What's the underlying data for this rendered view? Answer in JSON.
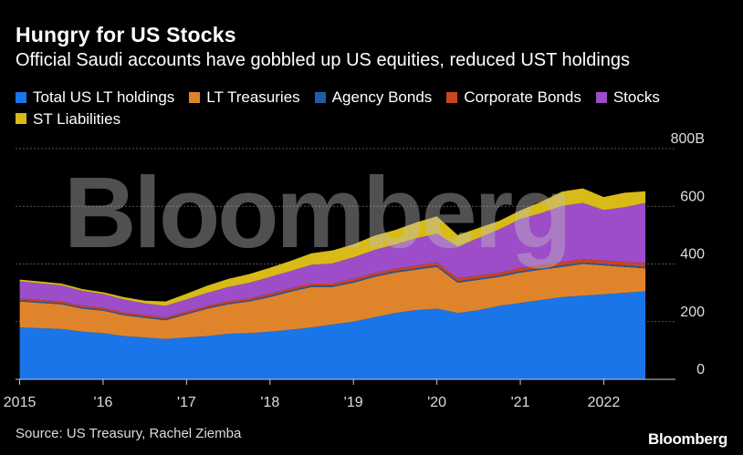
{
  "title": "Hungry for US Stocks",
  "subtitle": "Official Saudi accounts have gobbled up US equities, reduced UST holdings",
  "source": "Source: US Treasury, Rachel Ziemba",
  "brand": "Bloomberg",
  "watermark": "Bloomberg",
  "legend": [
    {
      "label": "Total US LT holdings",
      "color": "#1a75e8"
    },
    {
      "label": "LT Treasuries",
      "color": "#e0842b"
    },
    {
      "label": "Agency Bonds",
      "color": "#1f5ca8"
    },
    {
      "label": "Corporate Bonds",
      "color": "#c94420"
    },
    {
      "label": "Stocks",
      "color": "#9d4dc8"
    },
    {
      "label": "ST Liabilities",
      "color": "#d8bb17"
    }
  ],
  "chart_data": {
    "type": "area",
    "stacked": true,
    "x": [
      2015.0,
      2015.25,
      2015.5,
      2015.75,
      2016.0,
      2016.25,
      2016.5,
      2016.75,
      2017.0,
      2017.25,
      2017.5,
      2017.75,
      2018.0,
      2018.25,
      2018.5,
      2018.75,
      2019.0,
      2019.25,
      2019.5,
      2019.75,
      2020.0,
      2020.25,
      2020.5,
      2020.75,
      2021.0,
      2021.25,
      2021.5,
      2021.75,
      2022.0,
      2022.25,
      2022.5
    ],
    "x_ticks": [
      {
        "value": 2015,
        "label": "2015"
      },
      {
        "value": 2016,
        "label": "'16"
      },
      {
        "value": 2017,
        "label": "'17"
      },
      {
        "value": 2018,
        "label": "'18"
      },
      {
        "value": 2019,
        "label": "'19"
      },
      {
        "value": 2020,
        "label": "'20"
      },
      {
        "value": 2021,
        "label": "'21"
      },
      {
        "value": 2022,
        "label": "2022"
      }
    ],
    "y_ticks": [
      {
        "value": 800,
        "label": "800B"
      },
      {
        "value": 600,
        "label": "600"
      },
      {
        "value": 400,
        "label": "400"
      },
      {
        "value": 200,
        "label": "200"
      },
      {
        "value": 0,
        "label": "0"
      }
    ],
    "ylim": [
      0,
      800
    ],
    "xlim": [
      2014.95,
      2022.75
    ],
    "grid": true,
    "legend_position": "top-left",
    "series": [
      {
        "name": "Total US LT holdings",
        "values": [
          180,
          177,
          175,
          165,
          160,
          150,
          145,
          140,
          145,
          150,
          158,
          160,
          165,
          172,
          180,
          190,
          200,
          215,
          230,
          240,
          245,
          230,
          240,
          255,
          265,
          275,
          285,
          290,
          295,
          300,
          305
        ]
      },
      {
        "name": "LT Treasuries",
        "values": [
          90,
          88,
          85,
          80,
          78,
          72,
          68,
          65,
          80,
          95,
          102,
          110,
          120,
          132,
          140,
          130,
          135,
          140,
          140,
          140,
          145,
          105,
          105,
          100,
          105,
          105,
          105,
          110,
          100,
          90,
          80
        ]
      },
      {
        "name": "Agency Bonds",
        "values": [
          4,
          4,
          4,
          4,
          4,
          4,
          4,
          4,
          4,
          4,
          4,
          4,
          5,
          5,
          5,
          5,
          5,
          5,
          5,
          5,
          5,
          5,
          5,
          5,
          5,
          5,
          5,
          5,
          5,
          5,
          5
        ]
      },
      {
        "name": "Corporate Bonds",
        "values": [
          6,
          6,
          6,
          6,
          6,
          6,
          6,
          6,
          6,
          6,
          6,
          6,
          7,
          7,
          7,
          7,
          8,
          8,
          8,
          9,
          10,
          10,
          10,
          10,
          11,
          11,
          11,
          12,
          12,
          12,
          12
        ]
      },
      {
        "name": "Stocks",
        "values": [
          60,
          58,
          56,
          52,
          48,
          45,
          40,
          40,
          42,
          45,
          50,
          55,
          58,
          60,
          65,
          70,
          75,
          80,
          85,
          95,
          100,
          110,
          130,
          150,
          170,
          180,
          195,
          195,
          175,
          190,
          210
        ]
      },
      {
        "name": "ST Liabilities",
        "values": [
          6,
          6,
          6,
          6,
          6,
          8,
          10,
          15,
          20,
          25,
          28,
          30,
          32,
          35,
          40,
          45,
          45,
          50,
          50,
          55,
          60,
          40,
          35,
          30,
          30,
          40,
          50,
          50,
          45,
          50,
          40
        ]
      }
    ]
  }
}
